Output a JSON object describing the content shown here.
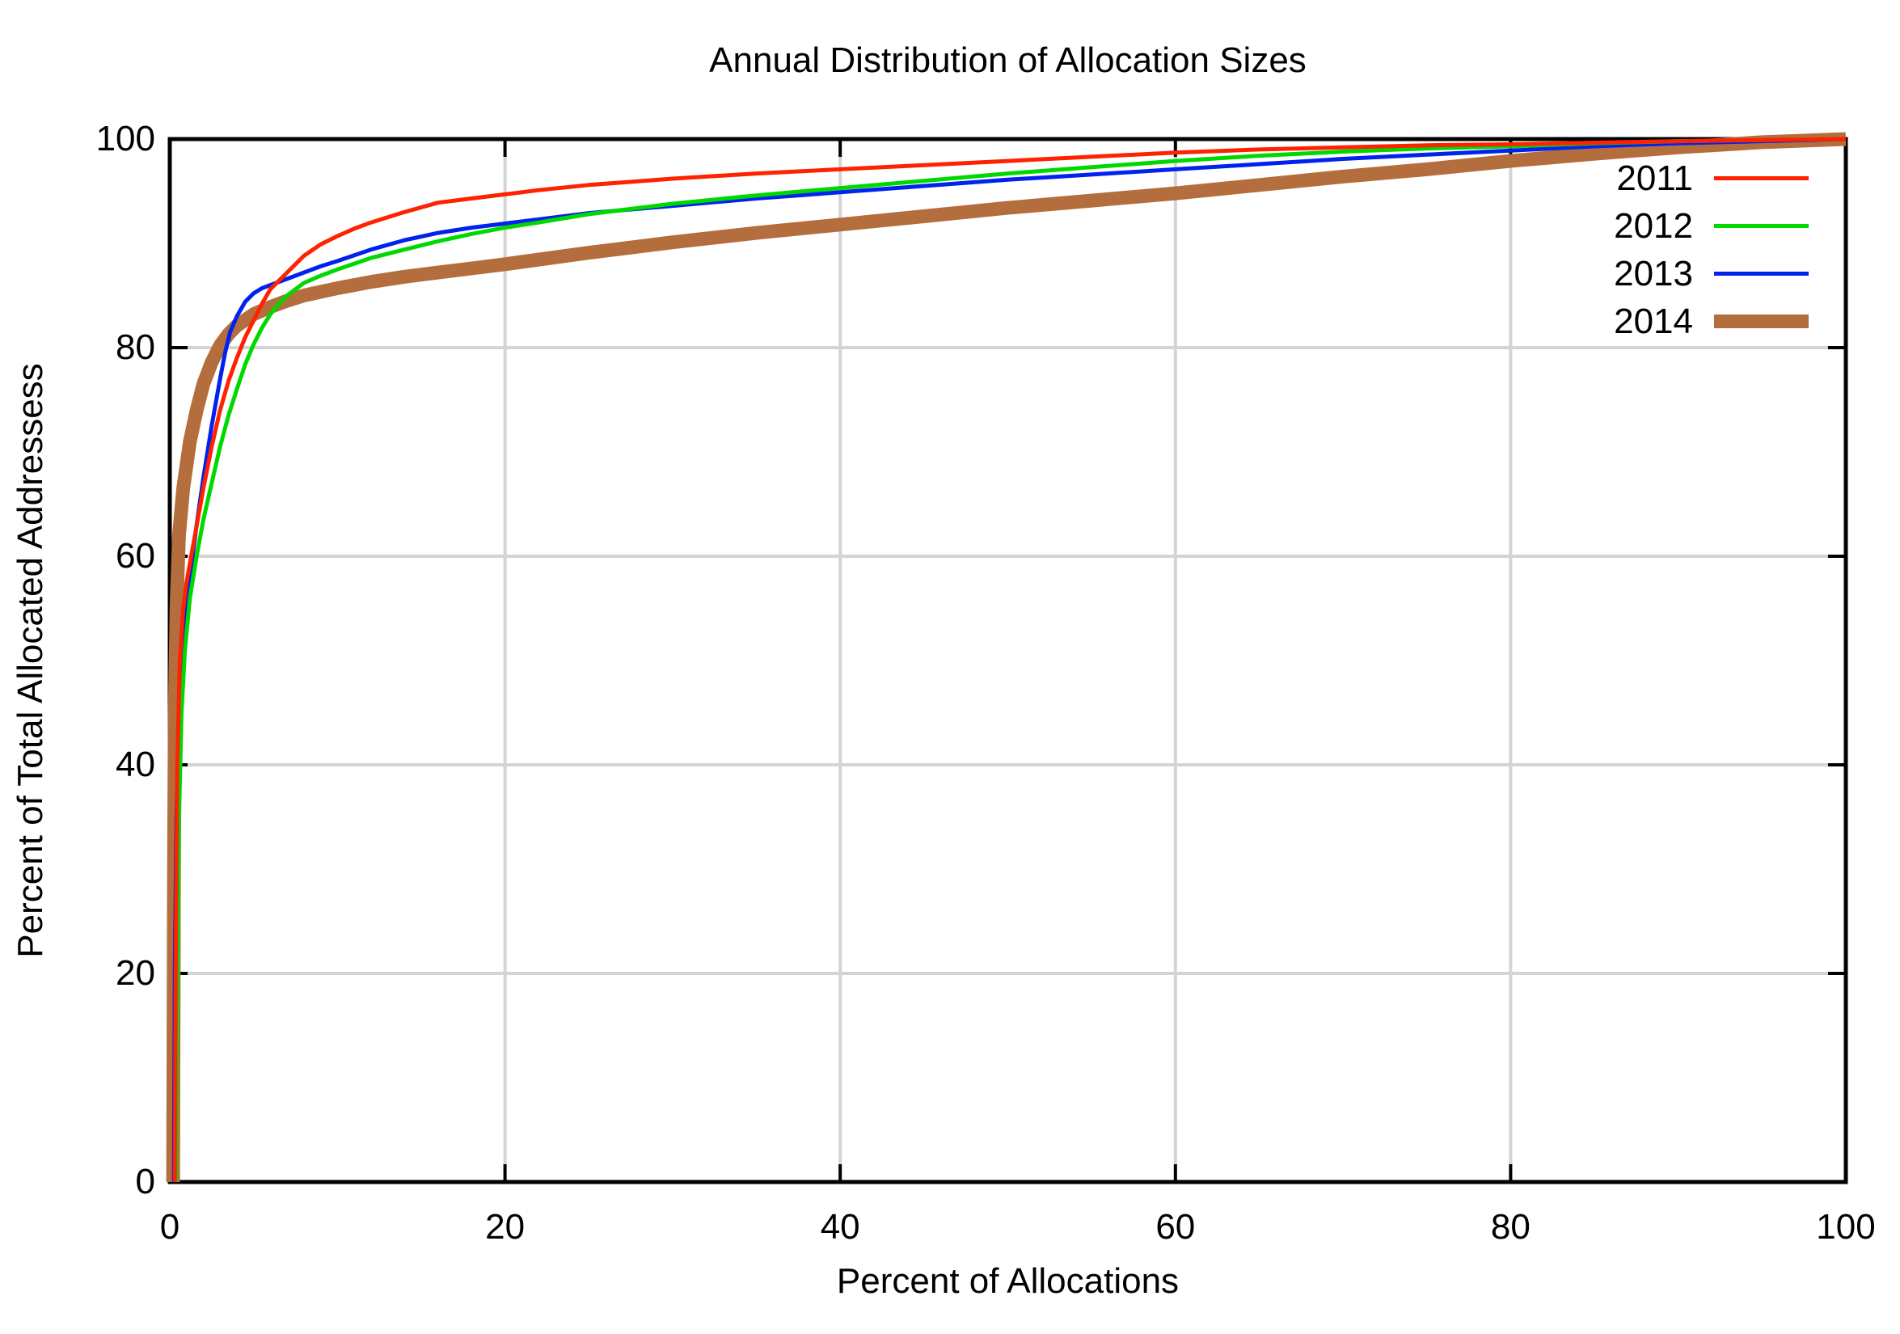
{
  "chart_data": {
    "type": "line",
    "title": "Annual Distribution of Allocation Sizes",
    "xlabel": "Percent of Allocations",
    "ylabel": "Percent of Total Allocated Addressess",
    "xlim": [
      0,
      100
    ],
    "ylim": [
      0,
      100
    ],
    "xticks": [
      0,
      20,
      40,
      60,
      80,
      100
    ],
    "yticks": [
      0,
      20,
      40,
      60,
      80,
      100
    ],
    "grid": true,
    "legend_position": "top-right",
    "background_color": "#ffffff",
    "axis_color": "#000000",
    "grid_color": "#d4d4d4",
    "series": [
      {
        "name": "2011",
        "color": "#ff2200",
        "line_width": 5,
        "points": [
          [
            0.3,
            0
          ],
          [
            0.35,
            20
          ],
          [
            0.45,
            40
          ],
          [
            0.6,
            50
          ],
          [
            0.8,
            55
          ],
          [
            1,
            57.5
          ],
          [
            1.5,
            62
          ],
          [
            2,
            66.5
          ],
          [
            2.5,
            70.5
          ],
          [
            3,
            74
          ],
          [
            3.5,
            76.8
          ],
          [
            4,
            79
          ],
          [
            4.5,
            81
          ],
          [
            5,
            82.6
          ],
          [
            5.5,
            84.2
          ],
          [
            6,
            85.6
          ],
          [
            6.5,
            86.4
          ],
          [
            7,
            87.2
          ],
          [
            8,
            88.8
          ],
          [
            9,
            89.9
          ],
          [
            10,
            90.7
          ],
          [
            11,
            91.4
          ],
          [
            12,
            92
          ],
          [
            14,
            93
          ],
          [
            16,
            93.9
          ],
          [
            18,
            94.3
          ],
          [
            20,
            94.7
          ],
          [
            22,
            95.1
          ],
          [
            25,
            95.6
          ],
          [
            30,
            96.2
          ],
          [
            35,
            96.7
          ],
          [
            40,
            97.1
          ],
          [
            45,
            97.5
          ],
          [
            50,
            97.9
          ],
          [
            55,
            98.3
          ],
          [
            60,
            98.7
          ],
          [
            65,
            99
          ],
          [
            70,
            99.2
          ],
          [
            75,
            99.4
          ],
          [
            80,
            99.5
          ],
          [
            85,
            99.65
          ],
          [
            90,
            99.8
          ],
          [
            95,
            99.9
          ],
          [
            100,
            100
          ]
        ]
      },
      {
        "name": "2012",
        "color": "#00d900",
        "line_width": 5,
        "points": [
          [
            0.35,
            0
          ],
          [
            0.45,
            20
          ],
          [
            0.55,
            35
          ],
          [
            0.7,
            45
          ],
          [
            0.9,
            51
          ],
          [
            1.2,
            56
          ],
          [
            1.6,
            60
          ],
          [
            2,
            63.5
          ],
          [
            2.5,
            67
          ],
          [
            3,
            70.5
          ],
          [
            3.5,
            73.5
          ],
          [
            4,
            76
          ],
          [
            4.5,
            78.4
          ],
          [
            5,
            80.3
          ],
          [
            5.5,
            81.9
          ],
          [
            6,
            83.2
          ],
          [
            6.5,
            84.2
          ],
          [
            7,
            85
          ],
          [
            8,
            86.2
          ],
          [
            9,
            86.9
          ],
          [
            10,
            87.5
          ],
          [
            12,
            88.6
          ],
          [
            14,
            89.4
          ],
          [
            16,
            90.2
          ],
          [
            18,
            90.9
          ],
          [
            20,
            91.5
          ],
          [
            22,
            92
          ],
          [
            25,
            92.8
          ],
          [
            30,
            93.8
          ],
          [
            35,
            94.6
          ],
          [
            40,
            95.3
          ],
          [
            45,
            96
          ],
          [
            50,
            96.7
          ],
          [
            55,
            97.3
          ],
          [
            60,
            97.9
          ],
          [
            65,
            98.4
          ],
          [
            70,
            98.8
          ],
          [
            75,
            99.1
          ],
          [
            80,
            99.3
          ],
          [
            85,
            99.6
          ],
          [
            90,
            99.8
          ],
          [
            95,
            99.9
          ],
          [
            100,
            100
          ]
        ]
      },
      {
        "name": "2013",
        "color": "#0022ee",
        "line_width": 5,
        "points": [
          [
            0.25,
            0
          ],
          [
            0.3,
            20
          ],
          [
            0.4,
            35
          ],
          [
            0.5,
            42
          ],
          [
            0.65,
            48
          ],
          [
            0.9,
            53
          ],
          [
            1.2,
            58
          ],
          [
            1.6,
            63
          ],
          [
            2,
            67.5
          ],
          [
            2.5,
            72.5
          ],
          [
            3,
            77
          ],
          [
            3.3,
            79.5
          ],
          [
            3.6,
            81.5
          ],
          [
            4,
            83
          ],
          [
            4.5,
            84.4
          ],
          [
            5,
            85.2
          ],
          [
            5.5,
            85.7
          ],
          [
            6,
            86
          ],
          [
            7,
            86.6
          ],
          [
            8,
            87.2
          ],
          [
            9,
            87.8
          ],
          [
            10,
            88.3
          ],
          [
            12,
            89.4
          ],
          [
            14,
            90.3
          ],
          [
            16,
            91
          ],
          [
            18,
            91.5
          ],
          [
            20,
            91.9
          ],
          [
            22,
            92.3
          ],
          [
            25,
            92.9
          ],
          [
            30,
            93.6
          ],
          [
            35,
            94.3
          ],
          [
            40,
            94.9
          ],
          [
            45,
            95.5
          ],
          [
            50,
            96.1
          ],
          [
            55,
            96.6
          ],
          [
            60,
            97.1
          ],
          [
            65,
            97.6
          ],
          [
            70,
            98.1
          ],
          [
            75,
            98.5
          ],
          [
            80,
            98.9
          ],
          [
            85,
            99.3
          ],
          [
            90,
            99.6
          ],
          [
            95,
            99.8
          ],
          [
            100,
            100
          ]
        ]
      },
      {
        "name": "2014",
        "color": "#b46e3e",
        "line_width": 17,
        "points": [
          [
            0.2,
            0
          ],
          [
            0.25,
            30
          ],
          [
            0.3,
            45
          ],
          [
            0.4,
            55
          ],
          [
            0.55,
            62
          ],
          [
            0.8,
            66.5
          ],
          [
            1.2,
            71
          ],
          [
            1.6,
            74
          ],
          [
            2,
            76.5
          ],
          [
            2.5,
            78.6
          ],
          [
            3,
            80.2
          ],
          [
            3.5,
            81.3
          ],
          [
            4,
            82.1
          ],
          [
            5,
            83.2
          ],
          [
            6,
            83.9
          ],
          [
            7,
            84.5
          ],
          [
            8,
            85
          ],
          [
            10,
            85.7
          ],
          [
            12,
            86.3
          ],
          [
            14,
            86.8
          ],
          [
            16,
            87.2
          ],
          [
            18,
            87.6
          ],
          [
            20,
            88
          ],
          [
            25,
            89.1
          ],
          [
            30,
            90.1
          ],
          [
            35,
            91
          ],
          [
            40,
            91.8
          ],
          [
            45,
            92.6
          ],
          [
            50,
            93.4
          ],
          [
            55,
            94.1
          ],
          [
            60,
            94.8
          ],
          [
            65,
            95.6
          ],
          [
            70,
            96.4
          ],
          [
            75,
            97.1
          ],
          [
            80,
            97.9
          ],
          [
            85,
            98.6
          ],
          [
            90,
            99.2
          ],
          [
            95,
            99.7
          ],
          [
            100,
            100
          ]
        ]
      }
    ]
  }
}
